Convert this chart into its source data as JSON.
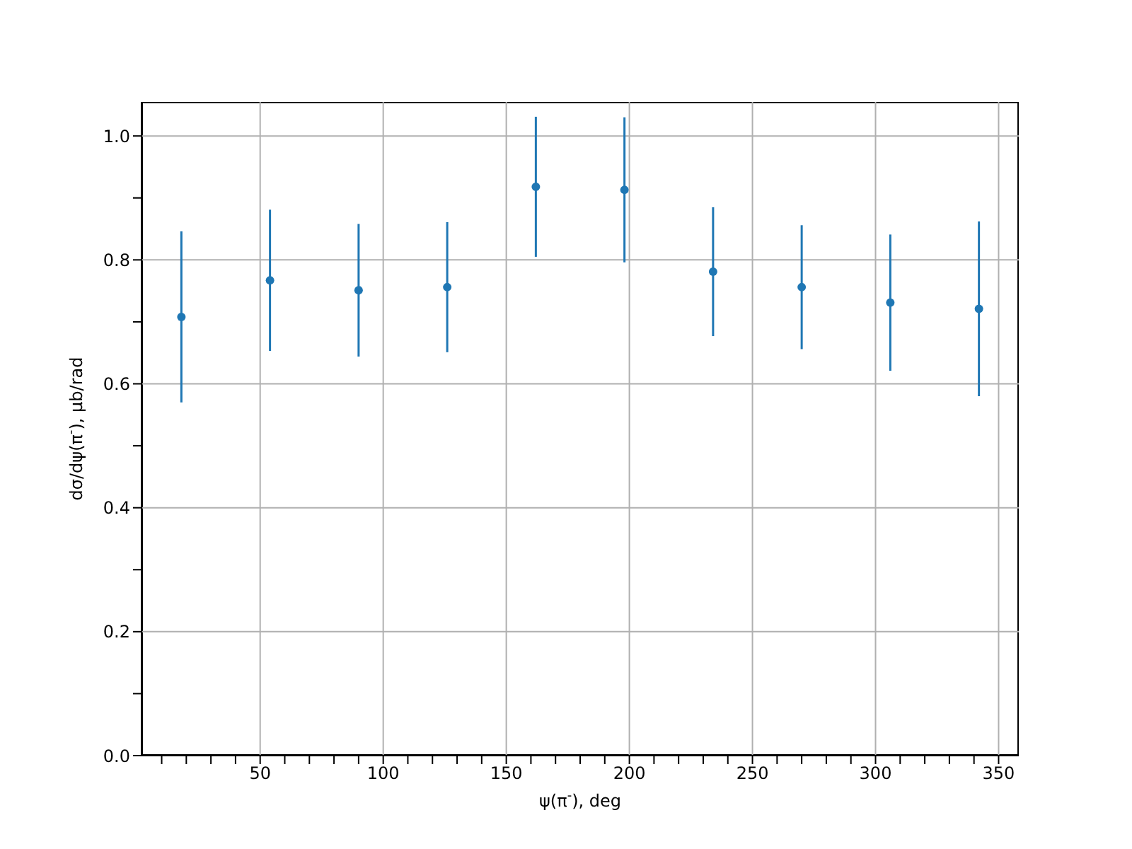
{
  "chart_data": {
    "type": "scatter",
    "xlabel": "ψ(π$^{-}$), deg",
    "ylabel": "dσ/dψ(π$^{-}$), μb/rad",
    "x": [
      18,
      54,
      90,
      126,
      162,
      198,
      234,
      270,
      306,
      342
    ],
    "series": [
      {
        "color": "#1f77b4",
        "values": [
          0.708,
          0.767,
          0.751,
          0.756,
          0.918,
          0.913,
          0.781,
          0.756,
          0.731,
          0.721
        ],
        "errors": [
          0.138,
          0.114,
          0.107,
          0.105,
          0.113,
          0.117,
          0.104,
          0.1,
          0.11,
          0.141
        ]
      }
    ],
    "xlim": [
      1.8,
      358.2
    ],
    "ylim": [
      0,
      1.055
    ],
    "xticks": [
      {
        "value": 10,
        "label": null
      },
      {
        "value": 20,
        "label": null
      },
      {
        "value": 30,
        "label": null
      },
      {
        "value": 40,
        "label": null
      },
      50,
      {
        "value": 60,
        "label": null
      },
      {
        "value": 70,
        "label": null
      },
      {
        "value": 80,
        "label": null
      },
      {
        "value": 90,
        "label": null
      },
      100,
      {
        "value": 110,
        "label": null
      },
      {
        "value": 120,
        "label": null
      },
      {
        "value": 130,
        "label": null
      },
      {
        "value": 140,
        "label": null
      },
      150,
      {
        "value": 160,
        "label": null
      },
      {
        "value": 170,
        "label": null
      },
      {
        "value": 180,
        "label": null
      },
      {
        "value": 190,
        "label": null
      },
      200,
      {
        "value": 210,
        "label": null
      },
      {
        "value": 220,
        "label": null
      },
      {
        "value": 230,
        "label": null
      },
      {
        "value": 240,
        "label": null
      },
      250,
      {
        "value": 260,
        "label": null
      },
      {
        "value": 270,
        "label": null
      },
      {
        "value": 280,
        "label": null
      },
      {
        "value": 290,
        "label": null
      },
      300,
      {
        "value": 310,
        "label": null
      },
      {
        "value": 320,
        "label": null
      },
      {
        "value": 330,
        "label": null
      },
      {
        "value": 340,
        "label": null
      },
      350
    ],
    "yticks": [
      {
        "value": 0,
        "label": "0.0"
      },
      {
        "value": 0.1,
        "label": null
      },
      {
        "value": 0.2,
        "label": "0.2"
      },
      {
        "value": 0.3,
        "label": null
      },
      {
        "value": 0.4,
        "label": "0.4"
      },
      {
        "value": 0.5,
        "label": null
      },
      {
        "value": 0.6,
        "label": "0.6"
      },
      {
        "value": 0.7,
        "label": null
      },
      {
        "value": 0.8,
        "label": "0.8"
      },
      {
        "value": 0.9,
        "label": null
      },
      {
        "value": 1.0,
        "label": "1.0"
      }
    ],
    "grid": true,
    "marker": "circle"
  }
}
